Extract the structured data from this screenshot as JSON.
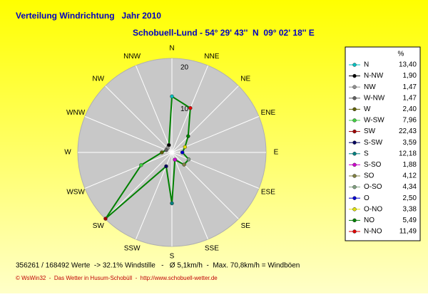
{
  "chart_data": {
    "type": "radar",
    "title": "Verteilung Windrichtung   Jahr 2010",
    "subtitle": "Schobuell-Lund - 54° 29' 43''  N  09° 02' 18'' E",
    "categories": [
      "N",
      "NNE",
      "NE",
      "ENE",
      "E",
      "ESE",
      "SE",
      "SSE",
      "S",
      "SSW",
      "SW",
      "WSW",
      "W",
      "WNW",
      "NW",
      "NNW"
    ],
    "legend_title": "%",
    "points": [
      {
        "name": "N",
        "color": "#00c0c0"
      },
      {
        "name": "N-NW",
        "color": "#000000"
      },
      {
        "name": "NW",
        "color": "#909090"
      },
      {
        "name": "W-NW",
        "color": "#606060"
      },
      {
        "name": "W",
        "color": "#606000"
      },
      {
        "name": "W-SW",
        "color": "#40d040"
      },
      {
        "name": "SW",
        "color": "#a00000"
      },
      {
        "name": "S-SW",
        "color": "#000060"
      },
      {
        "name": "S",
        "color": "#008080"
      },
      {
        "name": "S-SO",
        "color": "#d000d0"
      },
      {
        "name": "SO",
        "color": "#808040"
      },
      {
        "name": "O-SO",
        "color": "#80a080"
      },
      {
        "name": "O",
        "color": "#0000d0"
      },
      {
        "name": "O-NO",
        "color": "#e0e000"
      },
      {
        "name": "NO",
        "color": "#008000"
      },
      {
        "name": "N-NO",
        "color": "#e00000"
      }
    ],
    "values": [
      13.4,
      1.9,
      1.47,
      1.47,
      2.4,
      7.96,
      22.43,
      3.59,
      12.18,
      1.88,
      4.12,
      4.34,
      2.5,
      3.38,
      5.49,
      11.49
    ],
    "value_labels": [
      "13,40",
      "1,90",
      "1,47",
      "1,47",
      "2,40",
      "7,96",
      "22,43",
      "3,59",
      "12,18",
      "1,88",
      "4,12",
      "4,34",
      "2,50",
      "3,38",
      "5,49",
      "11,49"
    ],
    "line_color": "#008000",
    "rlim": [
      0,
      22.5
    ],
    "rticks": [
      10,
      20
    ],
    "notes": [
      "356261 / 168492 Werte  -> 32.1% Windstille   -   Ø 5,1km/h  -  Max. 70,8km/h = Windböen",
      "© WsWin32  -  Das Wetter in Husum-Schobüll  -  http://www.schobuell-wetter.de"
    ]
  }
}
